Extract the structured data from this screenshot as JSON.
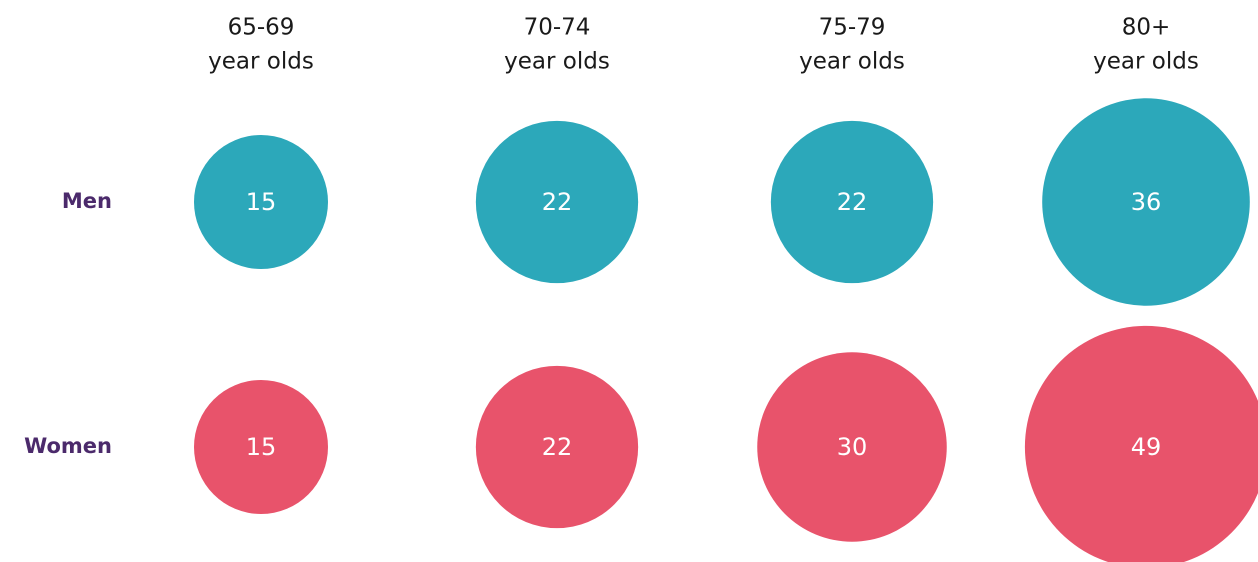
{
  "chart_data": {
    "type": "bubble",
    "categories": [
      [
        "65-69",
        "year olds"
      ],
      [
        "70-74",
        "year olds"
      ],
      [
        "75-79",
        "year olds"
      ],
      [
        "80+",
        "year olds"
      ]
    ],
    "series": [
      {
        "name": "Men",
        "color": "#2ca8ba",
        "values": [
          15,
          22,
          22,
          36
        ]
      },
      {
        "name": "Women",
        "color": "#e8536b",
        "values": [
          15,
          22,
          30,
          49
        ]
      }
    ]
  }
}
